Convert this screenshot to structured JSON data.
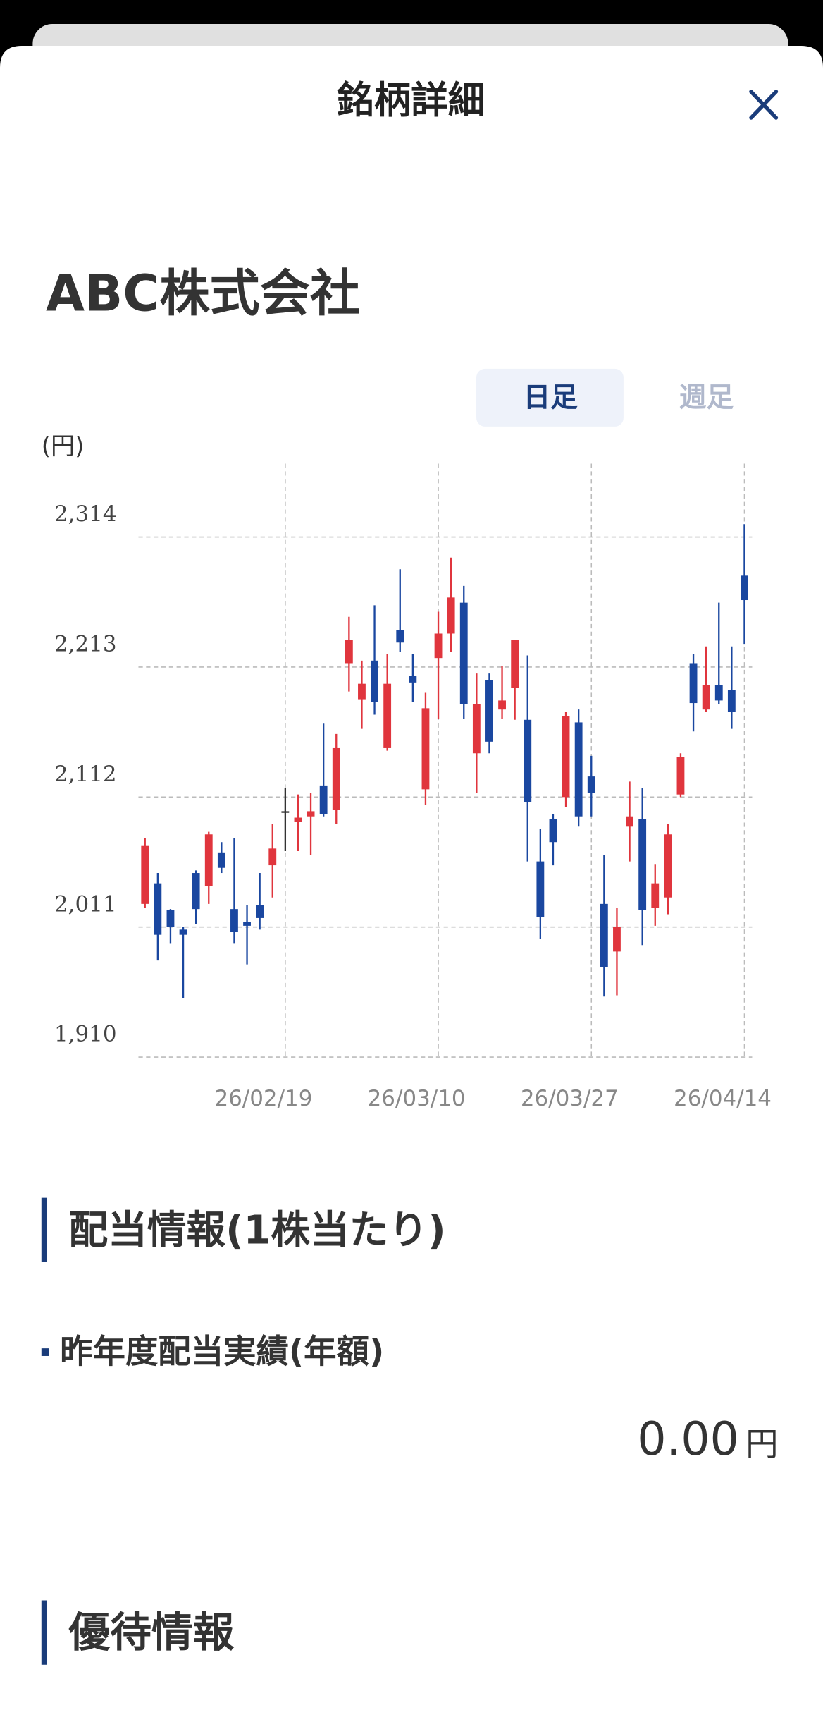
{
  "header": {
    "title": "銘柄詳細"
  },
  "stock_name": "ABC株式会社",
  "tabs": [
    "日足",
    "週足"
  ],
  "chart_data": {
    "type": "candlestick",
    "y_unit_label": "(円)",
    "categories": [
      null,
      null,
      null,
      null,
      null,
      null,
      null,
      null,
      null,
      null,
      null,
      "26/02/19",
      null,
      null,
      null,
      null,
      null,
      null,
      null,
      null,
      null,
      null,
      null,
      "26/03/10",
      null,
      null,
      null,
      null,
      null,
      null,
      null,
      null,
      null,
      null,
      null,
      "26/03/27",
      null,
      null,
      null,
      null,
      null,
      null,
      null,
      null,
      null,
      null,
      null,
      "26/04/14"
    ],
    "open": [
      2029,
      2045,
      2024,
      2009,
      2053,
      2043,
      2069,
      2025,
      2015,
      2028,
      2059,
      2101,
      2093,
      2097,
      2121,
      2102,
      2216,
      2188,
      2218,
      2150,
      2242,
      2206,
      2118,
      2220,
      2239,
      2263,
      2146,
      2203,
      2180,
      2197,
      2172,
      2062,
      2095,
      2112,
      2170,
      2128,
      2029,
      1992,
      2089,
      2095,
      2026,
      2034,
      2114,
      2216,
      2180,
      2199,
      2195,
      2284
    ],
    "high": [
      2080,
      2053,
      2025,
      2011,
      2055,
      2085,
      2077,
      2080,
      2028,
      2053,
      2091,
      2119,
      2114,
      2115,
      2169,
      2161,
      2252,
      2218,
      2261,
      2223,
      2289,
      2223,
      2193,
      2256,
      2298,
      2276,
      2208,
      2208,
      2214,
      2234,
      2222,
      2087,
      2099,
      2178,
      2180,
      2144,
      2067,
      2026,
      2124,
      2119,
      2060,
      2091,
      2146,
      2223,
      2229,
      2263,
      2229,
      2324
    ],
    "low": [
      2026,
      1985,
      1998,
      1956,
      2013,
      2029,
      2053,
      1998,
      1982,
      2009,
      2034,
      2070,
      2070,
      2067,
      2097,
      2091,
      2194,
      2165,
      2176,
      2148,
      2225,
      2186,
      2106,
      2173,
      2225,
      2173,
      2115,
      2146,
      2173,
      2172,
      2062,
      2002,
      2059,
      2104,
      2089,
      2097,
      1957,
      1958,
      2062,
      1997,
      2012,
      2021,
      2112,
      2163,
      2178,
      2184,
      2165,
      2231
    ],
    "close": [
      2074,
      2005,
      2011,
      2005,
      2025,
      2083,
      2057,
      2007,
      2012,
      2018,
      2072,
      2101,
      2096,
      2101,
      2099,
      2150,
      2234,
      2200,
      2186,
      2200,
      2232,
      2201,
      2181,
      2239,
      2267,
      2184,
      2184,
      2155,
      2187,
      2234,
      2108,
      2019,
      2077,
      2175,
      2097,
      2115,
      1980,
      2011,
      2097,
      2024,
      2045,
      2083,
      2143,
      2185,
      2199,
      2187,
      2178,
      2265
    ],
    "colors": {
      "up": "#e0353d",
      "down": "#1a47a0",
      "flat": "#333333"
    },
    "ylim": [
      1910,
      2371
    ],
    "yticks": [
      {
        "value": 1910,
        "label": "1,910"
      },
      {
        "value": 2011,
        "label": "2,011"
      },
      {
        "value": 2112,
        "label": "2,112"
      },
      {
        "value": 2213,
        "label": "2,213"
      },
      {
        "value": 2314,
        "label": "2,314"
      }
    ],
    "grid": true
  },
  "dividend": {
    "heading": "配当情報(1株当たり)",
    "sub_heading": "昨年度配当実績(年額)",
    "value": "0.00",
    "unit": "円"
  },
  "benefits": {
    "heading": "優待情報"
  }
}
